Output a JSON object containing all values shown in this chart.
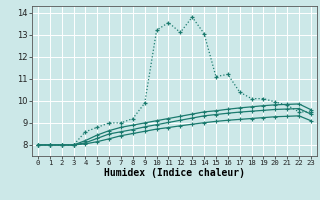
{
  "title": "",
  "xlabel": "Humidex (Indice chaleur)",
  "background_color": "#cce8e8",
  "grid_color": "#ffffff",
  "line_color": "#1a7a6e",
  "xlim": [
    -0.5,
    23.5
  ],
  "ylim": [
    7.5,
    14.3
  ],
  "xticks": [
    0,
    1,
    2,
    3,
    4,
    5,
    6,
    7,
    8,
    9,
    10,
    11,
    12,
    13,
    14,
    15,
    16,
    17,
    18,
    19,
    20,
    21,
    22,
    23
  ],
  "yticks": [
    8,
    9,
    10,
    11,
    12,
    13,
    14
  ],
  "series": [
    [
      8.0,
      8.0,
      8.0,
      8.0,
      8.6,
      8.8,
      9.0,
      9.0,
      9.2,
      9.9,
      13.2,
      13.55,
      13.1,
      13.8,
      13.05,
      11.1,
      11.2,
      10.4,
      10.1,
      10.1,
      9.95,
      9.8,
      9.5,
      9.5
    ],
    [
      8.0,
      8.0,
      8.0,
      8.0,
      8.2,
      8.45,
      8.65,
      8.8,
      8.9,
      9.0,
      9.1,
      9.2,
      9.3,
      9.4,
      9.5,
      9.55,
      9.62,
      9.68,
      9.73,
      9.78,
      9.82,
      9.84,
      9.86,
      9.6
    ],
    [
      8.0,
      8.0,
      8.0,
      8.0,
      8.1,
      8.3,
      8.5,
      8.6,
      8.7,
      8.82,
      8.92,
      9.02,
      9.12,
      9.22,
      9.32,
      9.38,
      9.44,
      9.49,
      9.53,
      9.57,
      9.61,
      9.63,
      9.65,
      9.4
    ],
    [
      8.0,
      8.0,
      8.0,
      8.0,
      8.05,
      8.15,
      8.28,
      8.42,
      8.52,
      8.62,
      8.72,
      8.79,
      8.87,
      8.94,
      9.01,
      9.07,
      9.12,
      9.16,
      9.2,
      9.24,
      9.28,
      9.3,
      9.32,
      9.1
    ]
  ]
}
